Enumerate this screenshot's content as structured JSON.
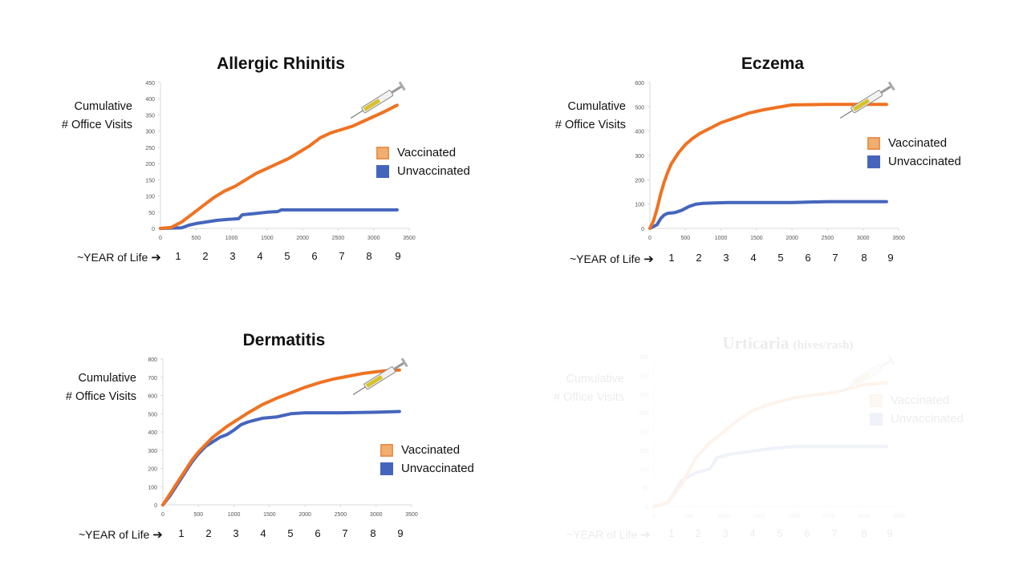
{
  "colors": {
    "vaccinated": "#ef7222",
    "unvaccinated": "#4565bd",
    "vaccinated_swatch": "#f2ae6e",
    "axis": "#d9d9d9"
  },
  "legend": {
    "vaccinated": "Vaccinated",
    "unvaccinated": "Unvaccinated"
  },
  "y_label": {
    "line1": "Cumulative",
    "line2": "# Office Visits"
  },
  "year_axis": {
    "label": "~YEAR of Life",
    "arrow": "➔",
    "years": [
      "1",
      "2",
      "3",
      "4",
      "5",
      "6",
      "7",
      "8",
      "9"
    ]
  },
  "chart_data": [
    {
      "type": "line",
      "title": "Allergic Rhinitis",
      "ylabel": "Cumulative # Office Visits",
      "xlim": [
        0,
        3500
      ],
      "ylim": [
        0,
        450
      ],
      "xticks": [
        0,
        500,
        1000,
        1500,
        2000,
        2500,
        3000,
        3500
      ],
      "yticks": [
        0,
        50,
        100,
        150,
        200,
        250,
        300,
        350,
        400,
        450
      ],
      "series": [
        {
          "name": "Vaccinated",
          "x": [
            0,
            150,
            300,
            450,
            600,
            750,
            900,
            1050,
            1200,
            1350,
            1500,
            1650,
            1800,
            1950,
            2100,
            2250,
            2400,
            2550,
            2700,
            2850,
            3000,
            3150,
            3330
          ],
          "y": [
            0,
            3,
            20,
            45,
            70,
            95,
            115,
            130,
            150,
            170,
            185,
            200,
            215,
            235,
            255,
            280,
            295,
            305,
            315,
            330,
            345,
            360,
            380
          ]
        },
        {
          "name": "Unvaccinated",
          "x": [
            0,
            300,
            400,
            500,
            650,
            800,
            950,
            1100,
            1150,
            1300,
            1500,
            1650,
            1700,
            2000,
            2500,
            3000,
            3330
          ],
          "y": [
            0,
            2,
            10,
            15,
            20,
            25,
            28,
            30,
            42,
            45,
            50,
            52,
            57,
            57,
            57,
            57,
            57
          ]
        }
      ]
    },
    {
      "type": "line",
      "title": "Eczema",
      "ylabel": "Cumulative # Office Visits",
      "xlim": [
        0,
        3500
      ],
      "ylim": [
        0,
        600
      ],
      "xticks": [
        0,
        500,
        1000,
        1500,
        2000,
        2500,
        3000,
        3500
      ],
      "yticks": [
        0,
        100,
        200,
        300,
        400,
        500,
        600
      ],
      "series": [
        {
          "name": "Vaccinated",
          "x": [
            0,
            50,
            100,
            150,
            200,
            250,
            300,
            400,
            500,
            600,
            700,
            800,
            900,
            1000,
            1200,
            1400,
            1600,
            1800,
            2000,
            2500,
            3000,
            3330
          ],
          "y": [
            0,
            30,
            80,
            140,
            190,
            230,
            265,
            310,
            345,
            370,
            390,
            405,
            420,
            435,
            455,
            475,
            488,
            498,
            508,
            510,
            510,
            510
          ]
        },
        {
          "name": "Unvaccinated",
          "x": [
            0,
            100,
            150,
            200,
            250,
            350,
            450,
            550,
            650,
            750,
            900,
            1100,
            1500,
            2000,
            2200,
            2500,
            3000,
            3330
          ],
          "y": [
            0,
            15,
            40,
            55,
            62,
            65,
            75,
            90,
            100,
            103,
            105,
            106,
            106,
            106,
            108,
            110,
            110,
            110
          ]
        }
      ]
    },
    {
      "type": "line",
      "title": "Dermatitis",
      "ylabel": "Cumulative # Office Visits",
      "xlim": [
        0,
        3500
      ],
      "ylim": [
        0,
        800
      ],
      "xticks": [
        0,
        500,
        1000,
        1500,
        2000,
        2500,
        3000,
        3500
      ],
      "yticks": [
        0,
        100,
        200,
        300,
        400,
        500,
        600,
        700,
        800
      ],
      "series": [
        {
          "name": "Vaccinated",
          "x": [
            0,
            100,
            200,
            300,
            400,
            500,
            600,
            700,
            800,
            900,
            1000,
            1200,
            1400,
            1600,
            1800,
            2000,
            2200,
            2400,
            2600,
            2800,
            3000,
            3200,
            3330
          ],
          "y": [
            0,
            60,
            120,
            180,
            240,
            290,
            330,
            370,
            400,
            430,
            455,
            505,
            550,
            585,
            615,
            645,
            670,
            690,
            705,
            720,
            730,
            738,
            740
          ]
        },
        {
          "name": "Unvaccinated",
          "x": [
            0,
            100,
            200,
            300,
            400,
            500,
            600,
            700,
            800,
            900,
            1000,
            1100,
            1200,
            1300,
            1400,
            1600,
            1800,
            2000,
            2500,
            3000,
            3330
          ],
          "y": [
            0,
            50,
            110,
            170,
            230,
            280,
            320,
            345,
            370,
            385,
            410,
            440,
            455,
            465,
            475,
            482,
            500,
            505,
            505,
            508,
            512
          ]
        }
      ]
    },
    {
      "type": "line",
      "title": "Urticaria",
      "subtitle": "(hives/rash)",
      "ylabel": "Cumulative # Office Visits",
      "xlim": [
        0,
        3500
      ],
      "ylim": [
        0,
        400
      ],
      "xticks": [
        0,
        500,
        1000,
        1500,
        2000,
        2500,
        3000,
        3500
      ],
      "yticks": [
        0,
        50,
        100,
        150,
        200,
        250,
        300,
        350,
        400
      ],
      "series": [
        {
          "name": "Vaccinated",
          "x": [
            0,
            200,
            400,
            600,
            800,
            1000,
            1200,
            1400,
            1600,
            1800,
            2000,
            2200,
            2400,
            2600,
            2800,
            3000,
            3330
          ],
          "y": [
            0,
            10,
            60,
            130,
            170,
            200,
            230,
            255,
            270,
            280,
            290,
            295,
            300,
            305,
            315,
            325,
            330
          ]
        },
        {
          "name": "Unvaccinated",
          "x": [
            0,
            200,
            400,
            600,
            700,
            800,
            900,
            1000,
            1100,
            1300,
            1500,
            1700,
            2000,
            2500,
            3000,
            3330
          ],
          "y": [
            0,
            10,
            70,
            90,
            95,
            100,
            130,
            135,
            140,
            145,
            150,
            155,
            160,
            160,
            160,
            160
          ]
        }
      ]
    }
  ]
}
